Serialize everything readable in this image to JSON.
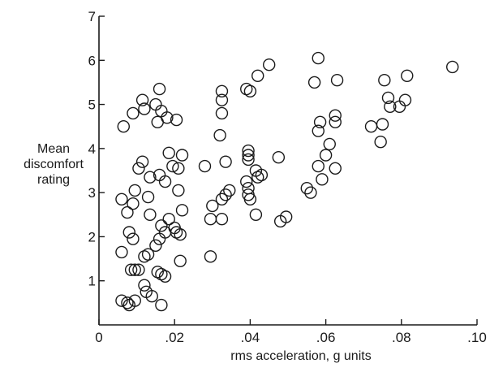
{
  "chart_data": {
    "type": "scatter",
    "title": "",
    "xlabel": "rms acceleration, g units",
    "ylabel": [
      "Mean",
      "discomfort",
      "rating"
    ],
    "xlim": [
      0,
      0.1
    ],
    "ylim": [
      0,
      7
    ],
    "x_ticks": [
      0,
      0.02,
      0.04,
      0.06,
      0.08,
      0.1
    ],
    "x_tick_labels": [
      "0",
      ".02",
      ".04",
      ".06",
      ".08",
      ".10"
    ],
    "y_ticks": [
      1,
      2,
      3,
      4,
      5,
      6,
      7
    ],
    "y_tick_labels": [
      "1",
      "2",
      "3",
      "4",
      "5",
      "6",
      "7"
    ],
    "grid": false,
    "series": [
      {
        "points": [
          [
            0.0065,
            4.5
          ],
          [
            0.009,
            4.8
          ],
          [
            0.0115,
            5.1
          ],
          [
            0.012,
            4.9
          ],
          [
            0.015,
            5.0
          ],
          [
            0.016,
            5.35
          ],
          [
            0.0155,
            4.6
          ],
          [
            0.0165,
            4.85
          ],
          [
            0.018,
            4.7
          ],
          [
            0.0205,
            4.65
          ],
          [
            0.0185,
            3.9
          ],
          [
            0.022,
            3.85
          ],
          [
            0.021,
            3.55
          ],
          [
            0.0195,
            3.6
          ],
          [
            0.016,
            3.4
          ],
          [
            0.0175,
            3.25
          ],
          [
            0.0105,
            3.55
          ],
          [
            0.0115,
            3.7
          ],
          [
            0.0135,
            3.35
          ],
          [
            0.0095,
            3.05
          ],
          [
            0.006,
            2.85
          ],
          [
            0.009,
            2.75
          ],
          [
            0.013,
            2.9
          ],
          [
            0.0075,
            2.55
          ],
          [
            0.0135,
            2.5
          ],
          [
            0.0165,
            2.25
          ],
          [
            0.0185,
            2.4
          ],
          [
            0.02,
            2.2
          ],
          [
            0.0215,
            2.05
          ],
          [
            0.022,
            2.6
          ],
          [
            0.021,
            3.05
          ],
          [
            0.0205,
            2.1
          ],
          [
            0.0175,
            2.1
          ],
          [
            0.016,
            1.95
          ],
          [
            0.015,
            1.8
          ],
          [
            0.013,
            1.6
          ],
          [
            0.012,
            1.55
          ],
          [
            0.009,
            1.95
          ],
          [
            0.008,
            2.1
          ],
          [
            0.006,
            1.65
          ],
          [
            0.0085,
            1.25
          ],
          [
            0.0095,
            1.25
          ],
          [
            0.0105,
            1.25
          ],
          [
            0.0165,
            1.15
          ],
          [
            0.0155,
            1.2
          ],
          [
            0.0175,
            1.1
          ],
          [
            0.0215,
            1.45
          ],
          [
            0.012,
            0.9
          ],
          [
            0.0125,
            0.75
          ],
          [
            0.014,
            0.65
          ],
          [
            0.0095,
            0.55
          ],
          [
            0.0075,
            0.5
          ],
          [
            0.008,
            0.45
          ],
          [
            0.006,
            0.55
          ],
          [
            0.0165,
            0.45
          ],
          [
            0.028,
            3.6
          ],
          [
            0.03,
            2.7
          ],
          [
            0.0295,
            2.4
          ],
          [
            0.0295,
            1.55
          ],
          [
            0.032,
            4.3
          ],
          [
            0.0325,
            4.8
          ],
          [
            0.0325,
            5.1
          ],
          [
            0.0325,
            5.3
          ],
          [
            0.0335,
            3.7
          ],
          [
            0.0345,
            3.05
          ],
          [
            0.0335,
            2.95
          ],
          [
            0.0325,
            2.85
          ],
          [
            0.0325,
            2.4
          ],
          [
            0.039,
            5.35
          ],
          [
            0.04,
            5.3
          ],
          [
            0.0395,
            3.95
          ],
          [
            0.0395,
            3.85
          ],
          [
            0.0395,
            3.75
          ],
          [
            0.039,
            3.25
          ],
          [
            0.0395,
            3.1
          ],
          [
            0.0395,
            2.95
          ],
          [
            0.04,
            2.85
          ],
          [
            0.0415,
            3.5
          ],
          [
            0.042,
            3.35
          ],
          [
            0.043,
            3.4
          ],
          [
            0.0415,
            2.5
          ],
          [
            0.042,
            5.65
          ],
          [
            0.045,
            5.9
          ],
          [
            0.0475,
            3.8
          ],
          [
            0.048,
            2.35
          ],
          [
            0.0495,
            2.45
          ],
          [
            0.055,
            3.1
          ],
          [
            0.056,
            3.0
          ],
          [
            0.057,
            5.5
          ],
          [
            0.058,
            6.05
          ],
          [
            0.058,
            4.4
          ],
          [
            0.0585,
            4.6
          ],
          [
            0.058,
            3.6
          ],
          [
            0.059,
            3.3
          ],
          [
            0.06,
            3.85
          ],
          [
            0.061,
            4.1
          ],
          [
            0.0625,
            4.75
          ],
          [
            0.0625,
            4.6
          ],
          [
            0.0625,
            3.55
          ],
          [
            0.063,
            5.55
          ],
          [
            0.072,
            4.5
          ],
          [
            0.0745,
            4.15
          ],
          [
            0.075,
            4.55
          ],
          [
            0.0755,
            5.55
          ],
          [
            0.0765,
            5.15
          ],
          [
            0.077,
            4.95
          ],
          [
            0.0795,
            4.95
          ],
          [
            0.081,
            5.1
          ],
          [
            0.0815,
            5.65
          ],
          [
            0.0935,
            5.85
          ]
        ]
      }
    ]
  }
}
